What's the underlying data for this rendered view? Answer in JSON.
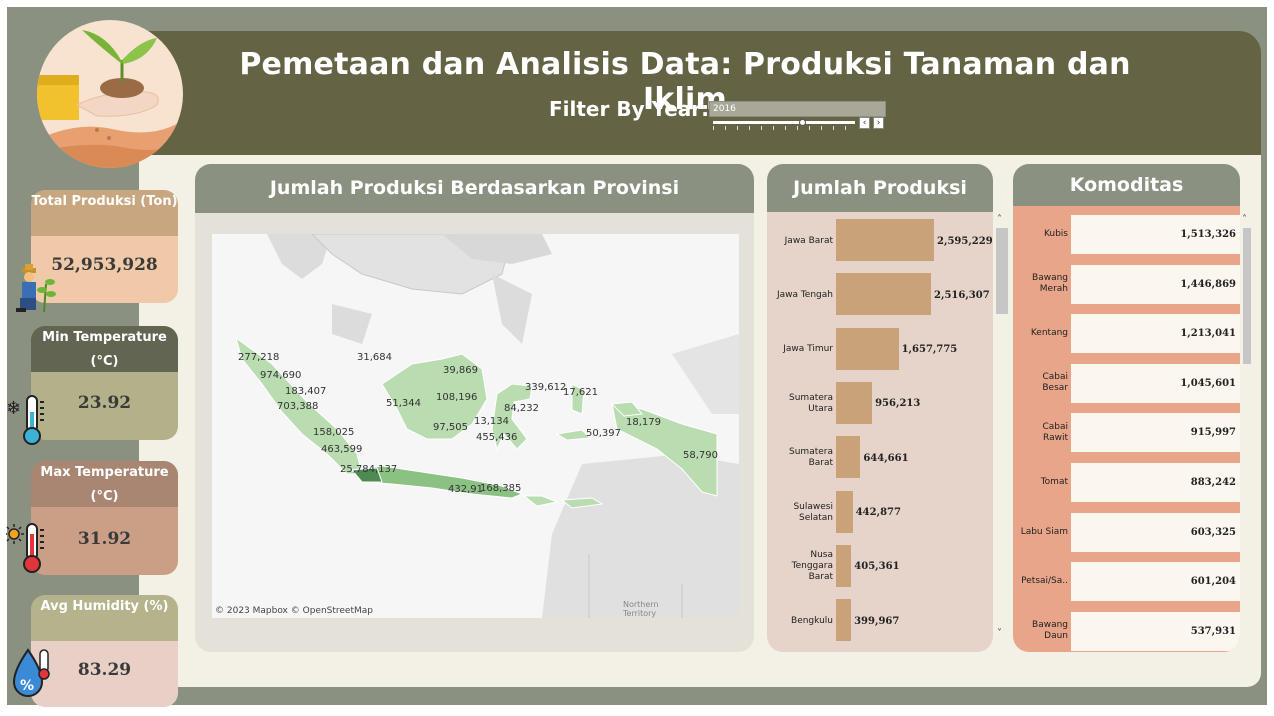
{
  "header": {
    "title": "Pemetaan dan Analisis Data: Produksi Tanaman dan Iklim",
    "filter_label": "Filter By Year:",
    "year_value": "2016"
  },
  "kpis": [
    {
      "label": "Total Produksi (Ton)",
      "value": "52,953,928",
      "icon": "farmer-icon"
    },
    {
      "label": "Min Temperature (°C)",
      "value": "23.92",
      "icon": "cold-thermometer-icon"
    },
    {
      "label": "Max Temperature (°C)",
      "value": "31.92",
      "icon": "hot-thermometer-icon"
    },
    {
      "label": "Avg Humidity (%)",
      "value": "83.29",
      "icon": "humidity-drop-icon"
    }
  ],
  "map": {
    "title": "Jumlah Produksi Berdasarkan Provinsi",
    "attribution": "© 2023 Mapbox © OpenStreetMap",
    "region_label": "Northern Territory",
    "labels": [
      "277,218",
      "974,690",
      "183,407",
      "703,388",
      "158,025",
      "463,599",
      "25,784,137",
      "31,684",
      "51,344",
      "39,869",
      "108,196",
      "97,505",
      "13,134",
      "84,232",
      "455,436",
      "339,612",
      "17,621",
      "50,397",
      "18,179",
      "58,790",
      "432,91",
      "168,385"
    ]
  },
  "bars": {
    "title": "Jumlah Produksi",
    "max": 2595229,
    "items": [
      {
        "label": "Jawa Barat",
        "value": 2595229,
        "display": "2,595,229"
      },
      {
        "label": "Jawa Tengah",
        "value": 2516307,
        "display": "2,516,307"
      },
      {
        "label": "Jawa Timur",
        "value": 1657775,
        "display": "1,657,775"
      },
      {
        "label": "Sumatera Utara",
        "value": 956213,
        "display": "956,213"
      },
      {
        "label": "Sumatera Barat",
        "value": 644661,
        "display": "644,661"
      },
      {
        "label": "Sulawesi Selatan",
        "value": 442877,
        "display": "442,877"
      },
      {
        "label": "Nusa Tenggara Barat",
        "value": 405361,
        "display": "405,361"
      },
      {
        "label": "Bengkulu",
        "value": 399967,
        "display": "399,967"
      }
    ]
  },
  "komoditas": {
    "title": "Komoditas",
    "items": [
      {
        "label": "Kubis",
        "value": "1,513,326"
      },
      {
        "label": "Bawang Merah",
        "value": "1,446,869"
      },
      {
        "label": "Kentang",
        "value": "1,213,041"
      },
      {
        "label": "Cabai Besar",
        "value": "1,045,601"
      },
      {
        "label": "Cabai Rawit",
        "value": "915,997"
      },
      {
        "label": "Tomat",
        "value": "883,242"
      },
      {
        "label": "Labu Siam",
        "value": "603,325"
      },
      {
        "label": "Petsai/Sa..",
        "value": "601,204"
      },
      {
        "label": "Bawang Daun",
        "value": "537,931"
      }
    ]
  },
  "colors": {
    "header": "#646344",
    "card_head": "#8a9181",
    "bar": "#c9a279",
    "kom_bg": "#e8a589",
    "map_land": "#b9dcb0",
    "map_dark": "#4e8a52"
  }
}
